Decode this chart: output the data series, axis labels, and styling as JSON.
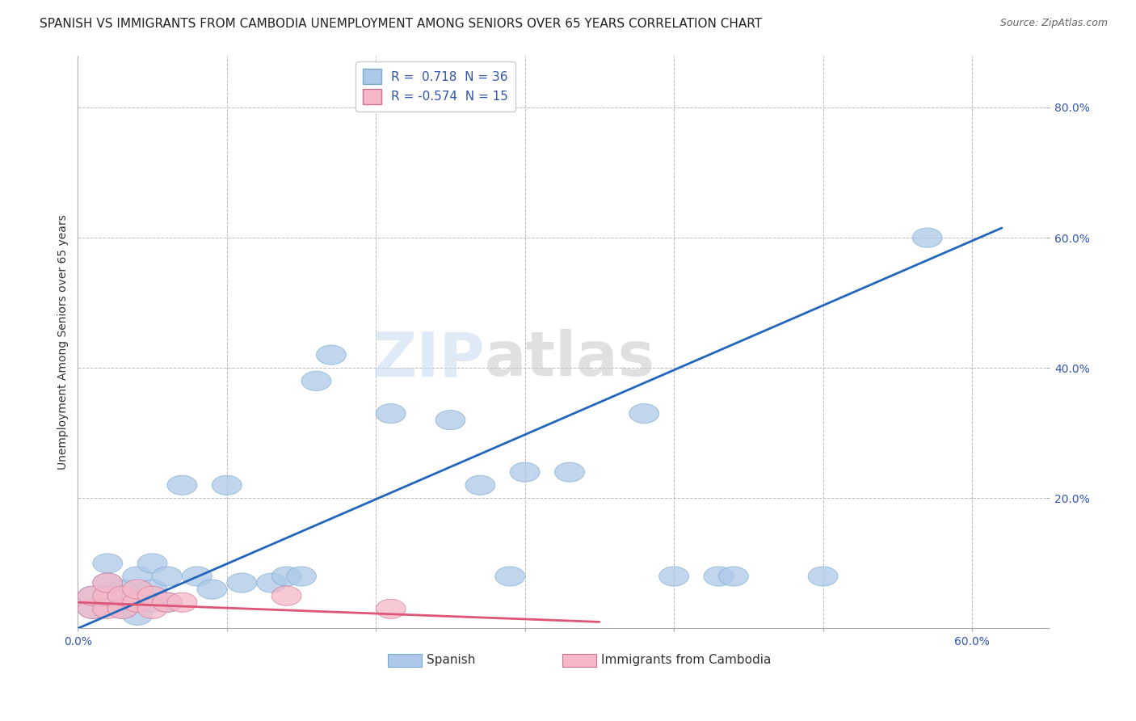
{
  "title": "SPANISH VS IMMIGRANTS FROM CAMBODIA UNEMPLOYMENT AMONG SENIORS OVER 65 YEARS CORRELATION CHART",
  "source": "Source: ZipAtlas.com",
  "ylabel": "Unemployment Among Seniors over 65 years",
  "xlim": [
    0.0,
    0.65
  ],
  "ylim": [
    0.0,
    0.88
  ],
  "xticks": [
    0.0,
    0.1,
    0.2,
    0.3,
    0.4,
    0.5,
    0.6
  ],
  "xticklabels": [
    "0.0%",
    "",
    "",
    "",
    "",
    "",
    "60.0%"
  ],
  "yticks": [
    0.0,
    0.2,
    0.4,
    0.6,
    0.8
  ],
  "yticklabels": [
    "",
    "20.0%",
    "40.0%",
    "60.0%",
    "80.0%"
  ],
  "blue_R": 0.718,
  "blue_N": 36,
  "pink_R": -0.574,
  "pink_N": 15,
  "blue_color": "#adc8e8",
  "pink_color": "#f5b8c8",
  "blue_line_color": "#2266bb",
  "pink_line_color": "#dd5577",
  "blue_scatter_x": [
    0.01,
    0.01,
    0.02,
    0.02,
    0.02,
    0.03,
    0.03,
    0.04,
    0.04,
    0.05,
    0.05,
    0.05,
    0.06,
    0.06,
    0.07,
    0.08,
    0.09,
    0.1,
    0.11,
    0.13,
    0.14,
    0.15,
    0.16,
    0.17,
    0.21,
    0.25,
    0.27,
    0.29,
    0.3,
    0.33,
    0.38,
    0.4,
    0.43,
    0.44,
    0.5,
    0.57
  ],
  "blue_scatter_y": [
    0.03,
    0.05,
    0.04,
    0.07,
    0.1,
    0.03,
    0.06,
    0.02,
    0.08,
    0.04,
    0.06,
    0.1,
    0.04,
    0.08,
    0.22,
    0.08,
    0.06,
    0.22,
    0.07,
    0.07,
    0.08,
    0.08,
    0.38,
    0.42,
    0.33,
    0.32,
    0.22,
    0.08,
    0.24,
    0.24,
    0.33,
    0.08,
    0.08,
    0.08,
    0.08,
    0.6
  ],
  "pink_scatter_x": [
    0.01,
    0.01,
    0.02,
    0.02,
    0.02,
    0.03,
    0.03,
    0.04,
    0.04,
    0.05,
    0.05,
    0.06,
    0.07,
    0.14,
    0.21
  ],
  "pink_scatter_y": [
    0.03,
    0.05,
    0.03,
    0.05,
    0.07,
    0.03,
    0.05,
    0.04,
    0.06,
    0.03,
    0.05,
    0.04,
    0.04,
    0.05,
    0.03
  ],
  "blue_line_x": [
    0.0,
    0.62
  ],
  "blue_line_y": [
    0.0,
    0.615
  ],
  "pink_line_x": [
    0.0,
    0.35
  ],
  "pink_line_y": [
    0.04,
    0.01
  ],
  "watermark_zip": "ZIP",
  "watermark_atlas": "atlas",
  "title_fontsize": 11,
  "axis_label_fontsize": 10,
  "tick_fontsize": 10,
  "legend_fontsize": 11
}
